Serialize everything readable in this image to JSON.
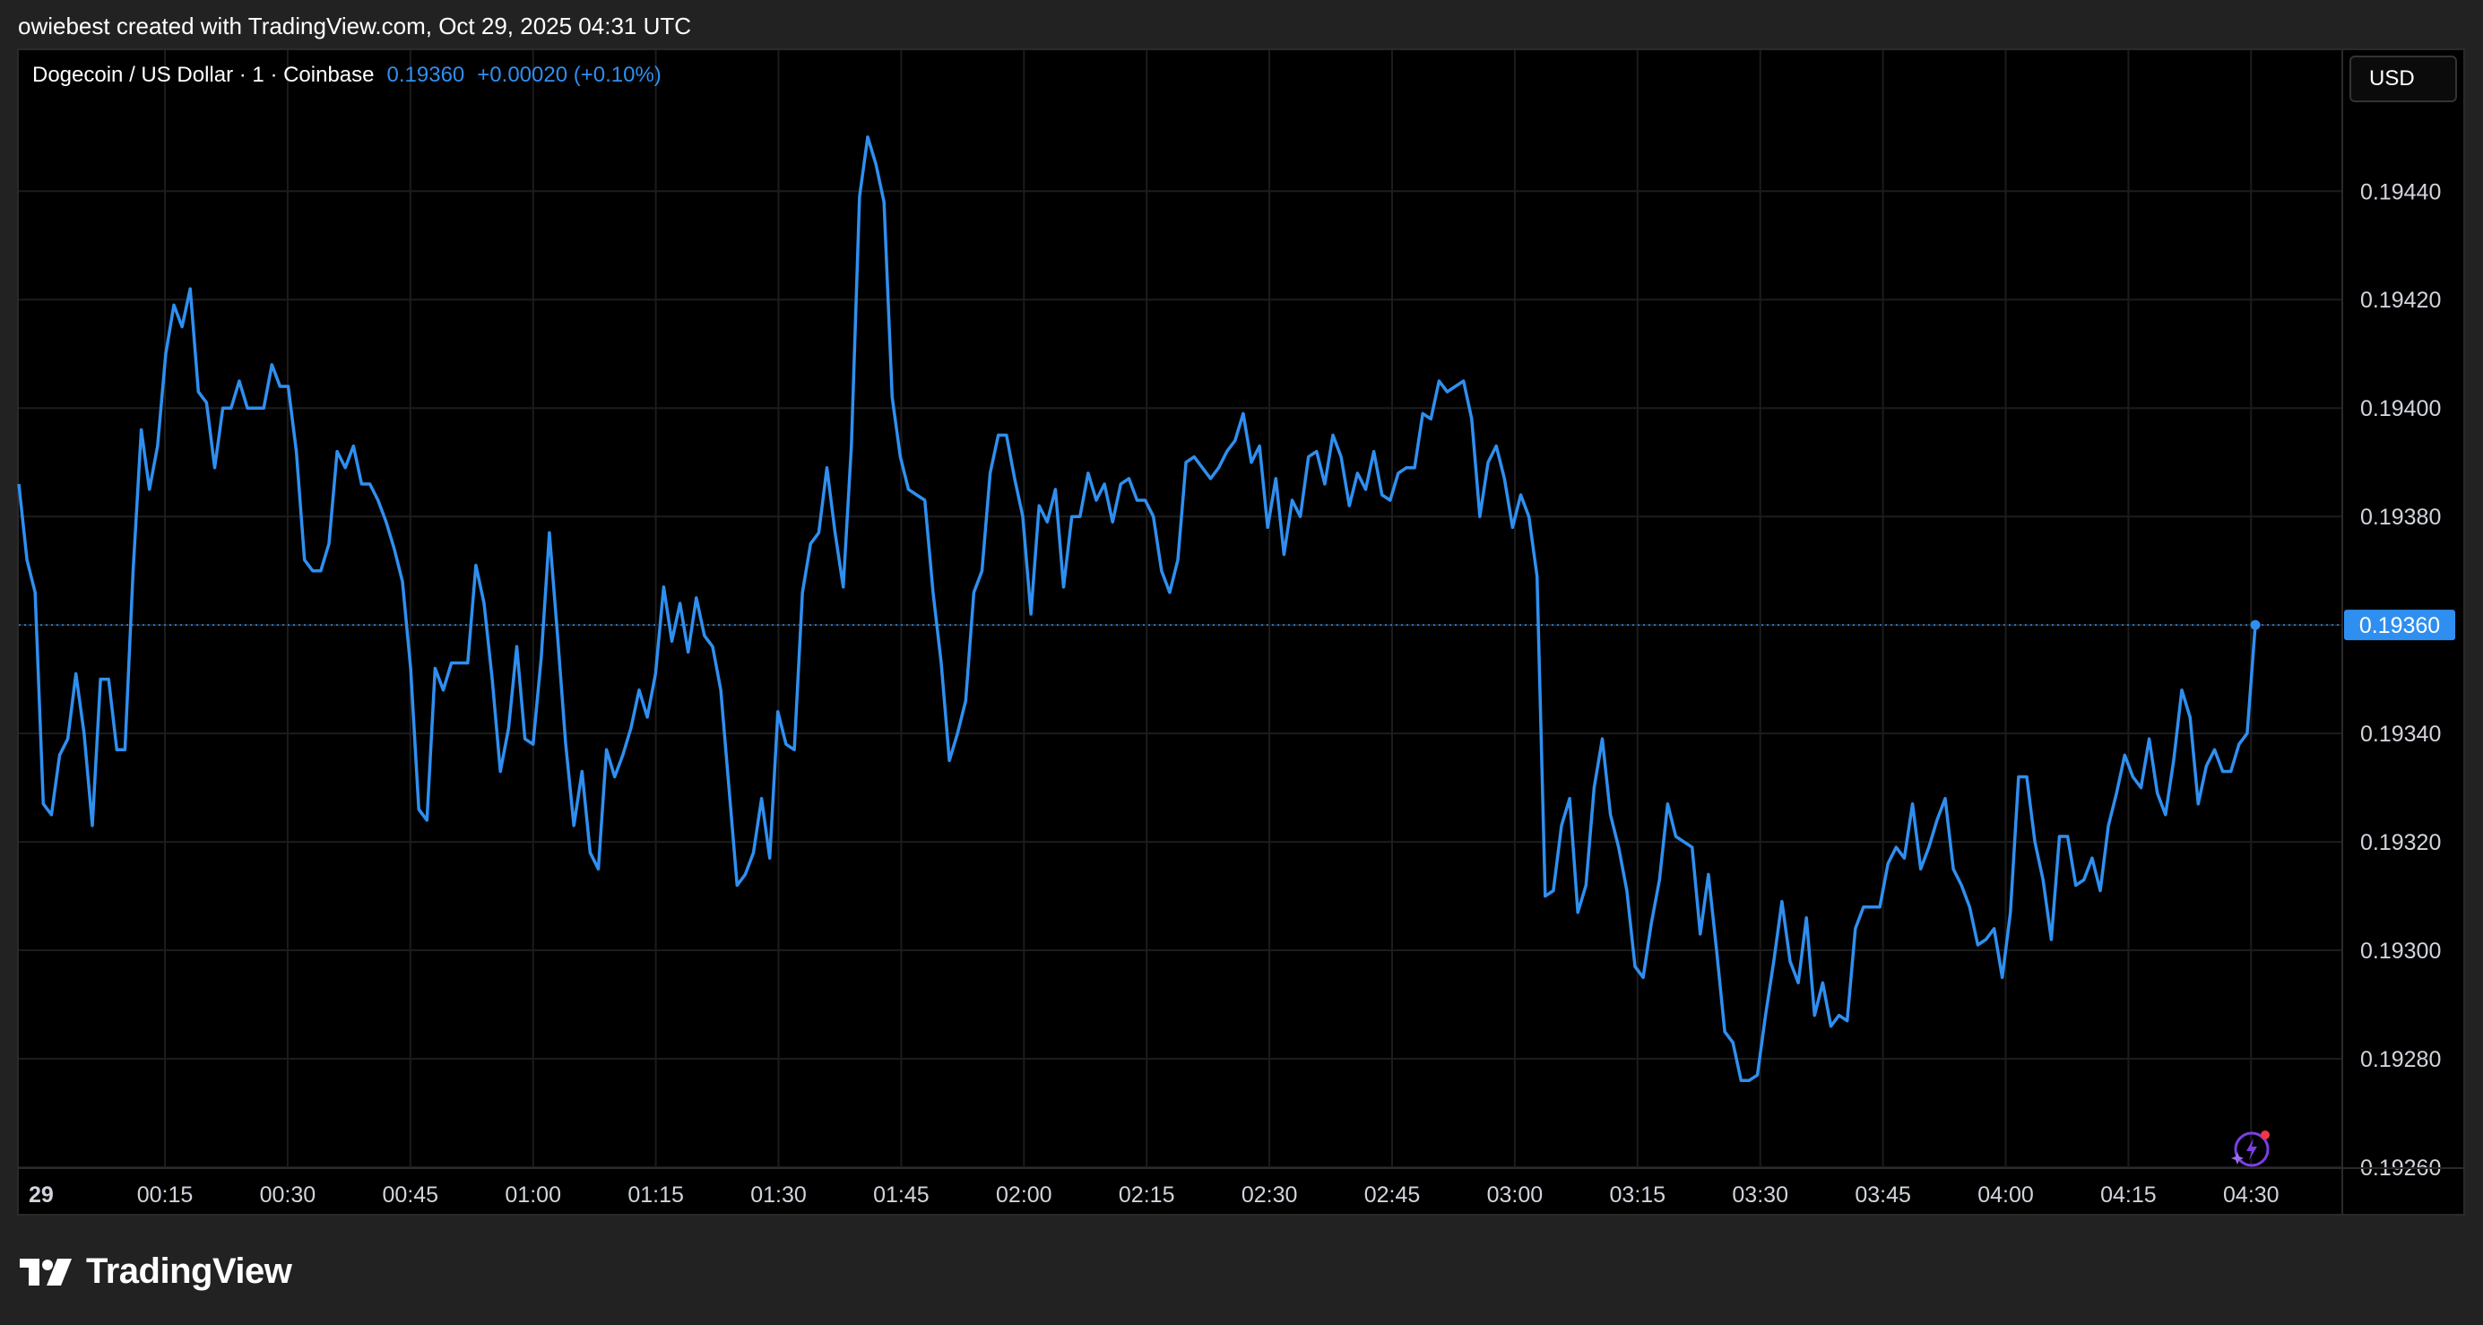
{
  "header": {
    "caption": "owiebest created with TradingView.com, Oct 29, 2025 04:31 UTC"
  },
  "legend": {
    "symbol": "Dogecoin / US Dollar · 1 · Coinbase",
    "last_price": "0.19360",
    "change": "+0.00020 (+0.10%)"
  },
  "currency_button": {
    "label": "USD"
  },
  "price_tag": "0.19360",
  "footer": {
    "brand": "TradingView"
  },
  "colors": {
    "line": "#2f8ff0",
    "background": "#000000",
    "grid": "#1c1c1c",
    "purple_icon": "#7b3fe4",
    "red_dot": "#f23645"
  },
  "icons": {
    "ai_assistant": "sparkle-lightning-icon",
    "brand_logo": "tradingview-logo-icon"
  },
  "chart_data": {
    "type": "line",
    "title": "Dogecoin / US Dollar · 1 · Coinbase",
    "ylim": [
      0.1926,
      0.19466
    ],
    "y_ticks": [
      "0.19440",
      "0.19420",
      "0.19400",
      "0.19380",
      "0.19360",
      "0.19340",
      "0.19320",
      "0.19300",
      "0.19280",
      "0.19260"
    ],
    "x_ticks": [
      "29",
      "00:15",
      "00:30",
      "00:45",
      "01:00",
      "01:15",
      "01:30",
      "01:45",
      "02:00",
      "02:15",
      "02:30",
      "02:45",
      "03:00",
      "03:15",
      "03:30",
      "03:45",
      "04:00",
      "04:15",
      "04:30"
    ],
    "x_start_label": "00:00",
    "last_value": 0.1936,
    "grid": true,
    "series": [
      {
        "values": [
          0.19386,
          0.19372,
          0.19366,
          0.19327,
          0.19325,
          0.19336,
          0.19339,
          0.19351,
          0.1934,
          0.19323,
          0.1935,
          0.1935,
          0.19337,
          0.19337,
          0.1937,
          0.19396,
          0.19385,
          0.19393,
          0.1941,
          0.19419,
          0.19415,
          0.19422,
          0.19403,
          0.19401,
          0.19389,
          0.194,
          0.194,
          0.19405,
          0.194,
          0.194,
          0.194,
          0.19408,
          0.19404,
          0.19404,
          0.19392,
          0.19372,
          0.1937,
          0.1937,
          0.19375,
          0.19392,
          0.19389,
          0.19393,
          0.19386,
          0.19386,
          0.19383,
          0.19379,
          0.19374,
          0.19368,
          0.19352,
          0.19326,
          0.19324,
          0.19352,
          0.19348,
          0.19353,
          0.19353,
          0.19353,
          0.19371,
          0.19364,
          0.1935,
          0.19333,
          0.19341,
          0.19356,
          0.19339,
          0.19338,
          0.19354,
          0.19377,
          0.19358,
          0.19338,
          0.19323,
          0.19333,
          0.19318,
          0.19315,
          0.19337,
          0.19332,
          0.19336,
          0.19341,
          0.19348,
          0.19343,
          0.19351,
          0.19367,
          0.19357,
          0.19364,
          0.19355,
          0.19365,
          0.19358,
          0.19356,
          0.19348,
          0.1933,
          0.19312,
          0.19314,
          0.19318,
          0.19328,
          0.19317,
          0.19344,
          0.19338,
          0.19337,
          0.19366,
          0.19375,
          0.19377,
          0.19389,
          0.19377,
          0.19367,
          0.19393,
          0.19439,
          0.1945,
          0.19445,
          0.19438,
          0.19402,
          0.19391,
          0.19385,
          0.19384,
          0.19383,
          0.19366,
          0.19353,
          0.19335,
          0.1934,
          0.19346,
          0.19366,
          0.1937,
          0.19388,
          0.19395,
          0.19395,
          0.19387,
          0.1938,
          0.19362,
          0.19382,
          0.19379,
          0.19385,
          0.19367,
          0.1938,
          0.1938,
          0.19388,
          0.19383,
          0.19386,
          0.19379,
          0.19386,
          0.19387,
          0.19383,
          0.19383,
          0.1938,
          0.1937,
          0.19366,
          0.19372,
          0.1939,
          0.19391,
          0.19389,
          0.19387,
          0.19389,
          0.19392,
          0.19394,
          0.19399,
          0.1939,
          0.19393,
          0.19378,
          0.19387,
          0.19373,
          0.19383,
          0.1938,
          0.19391,
          0.19392,
          0.19386,
          0.19395,
          0.19391,
          0.19382,
          0.19388,
          0.19385,
          0.19392,
          0.19384,
          0.19383,
          0.19388,
          0.19389,
          0.19389,
          0.19399,
          0.19398,
          0.19405,
          0.19403,
          0.19404,
          0.19405,
          0.19398,
          0.1938,
          0.1939,
          0.19393,
          0.19387,
          0.19378,
          0.19384,
          0.1938,
          0.19369,
          0.1931,
          0.19311,
          0.19323,
          0.19328,
          0.19307,
          0.19312,
          0.1933,
          0.19339,
          0.19325,
          0.19319,
          0.19311,
          0.19297,
          0.19295,
          0.19305,
          0.19313,
          0.19327,
          0.19321,
          0.1932,
          0.19319,
          0.19303,
          0.19314,
          0.193,
          0.19285,
          0.19283,
          0.19276,
          0.19276,
          0.19277,
          0.19288,
          0.19298,
          0.19309,
          0.19298,
          0.19294,
          0.19306,
          0.19288,
          0.19294,
          0.19286,
          0.19288,
          0.19287,
          0.19304,
          0.19308,
          0.19308,
          0.19308,
          0.19316,
          0.19319,
          0.19317,
          0.19327,
          0.19315,
          0.19319,
          0.19324,
          0.19328,
          0.19315,
          0.19312,
          0.19308,
          0.19301,
          0.19302,
          0.19304,
          0.19295,
          0.19307,
          0.19332,
          0.19332,
          0.1932,
          0.19313,
          0.19302,
          0.19321,
          0.19321,
          0.19312,
          0.19313,
          0.19317,
          0.19311,
          0.19323,
          0.19329,
          0.19336,
          0.19332,
          0.1933,
          0.19339,
          0.19329,
          0.19325,
          0.19335,
          0.19348,
          0.19343,
          0.19327,
          0.19334,
          0.19337,
          0.19333,
          0.19333,
          0.19338,
          0.1934,
          0.1936
        ]
      }
    ]
  }
}
